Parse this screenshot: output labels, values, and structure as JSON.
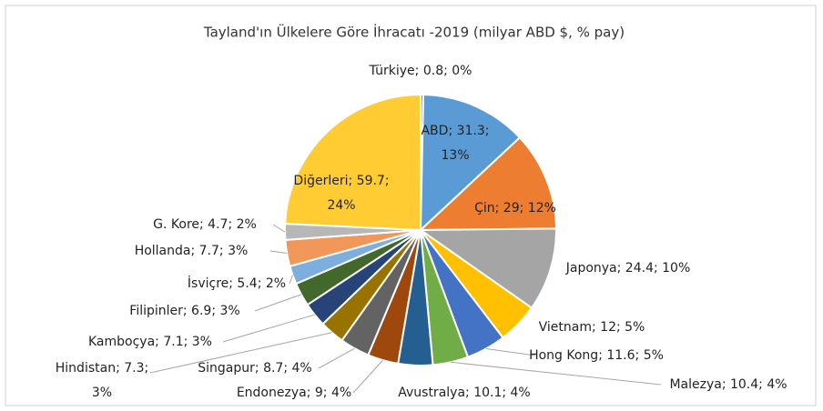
{
  "chart_data": {
    "type": "pie",
    "title": "Tayland'ın Ülkelere Göre İhracatı -2019 (milyar ABD $, % pay)",
    "values": [
      0.8,
      31.3,
      29,
      24.4,
      12,
      11.6,
      10.4,
      10.1,
      9,
      8.7,
      7.3,
      7.1,
      6.9,
      5.4,
      7.7,
      4.7,
      59.7
    ],
    "value_labels": [
      "Türkiye; 0.8; 0%",
      "ABD; 31.3; 13%",
      "Çin; 29; 12%",
      "Japonya; 24.4; 10%",
      "Vietnam; 12; 5%",
      "Hong Kong; 11.6; 5%",
      "Malezya; 10.4; 4%",
      "Avustralya; 10.1; 4%",
      "Endonezya; 9; 4%",
      "Singapur; 8.7; 4%",
      "Hindistan; 7.3; 3%",
      "Kamboçya; 7.1; 3%",
      "Filipinler; 6.9; 3%",
      "İsviçre; 5.4; 2%",
      "Hollanda; 7.7; 3%",
      "G. Kore; 4.7; 2%",
      "Diğerleri; 59.7; 24%"
    ],
    "colors": [
      "#5b9bd5",
      "#5b9bd5",
      "#ed7d31",
      "#a5a5a5",
      "#ffc000",
      "#4472c4",
      "#70ad47",
      "#255e91",
      "#9e480e",
      "#636363",
      "#997300",
      "#264478",
      "#43682b",
      "#7cafdd",
      "#f1975a",
      "#b7b7b7",
      "#ffcd33"
    ]
  }
}
